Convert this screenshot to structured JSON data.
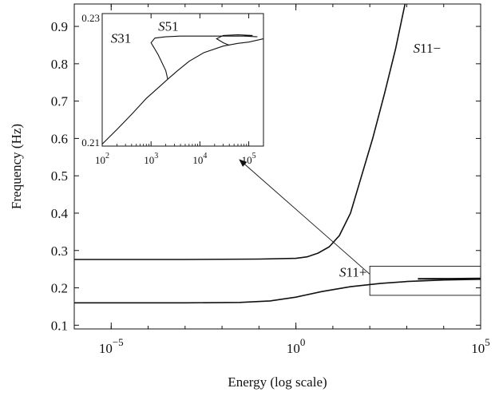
{
  "chart_data": [
    {
      "type": "line",
      "xlabel": "Energy (log scale)",
      "ylabel": "Frequency (Hz)",
      "x_scale": "log",
      "xlim": [
        1e-06,
        100000
      ],
      "ylim": [
        0.09,
        0.96
      ],
      "x_ticks": [
        {
          "value": 1e-05,
          "base": "10",
          "exp": "−5"
        },
        {
          "value": 1,
          "base": "10",
          "exp": "0"
        },
        {
          "value": 100000,
          "base": "10",
          "exp": "5"
        }
      ],
      "y_ticks": [
        {
          "value": 0.1,
          "label": "0.1"
        },
        {
          "value": 0.2,
          "label": "0.2"
        },
        {
          "value": 0.3,
          "label": "0.3"
        },
        {
          "value": 0.4,
          "label": "0.4"
        },
        {
          "value": 0.5,
          "label": "0.5"
        },
        {
          "value": 0.6,
          "label": "0.6"
        },
        {
          "value": 0.7,
          "label": "0.7"
        },
        {
          "value": 0.8,
          "label": "0.8"
        },
        {
          "value": 0.9,
          "label": "0.9"
        }
      ],
      "series": [
        {
          "name": "S11−",
          "points": [
            [
              1e-06,
              0.276
            ],
            [
              0.001,
              0.276
            ],
            [
              0.1,
              0.277
            ],
            [
              1,
              0.279
            ],
            [
              2,
              0.283
            ],
            [
              4,
              0.293
            ],
            [
              8,
              0.31
            ],
            [
              15,
              0.34
            ],
            [
              30,
              0.4
            ],
            [
              60,
              0.5
            ],
            [
              120,
              0.6
            ],
            [
              250,
              0.72
            ],
            [
              500,
              0.84
            ],
            [
              900,
              0.96
            ]
          ]
        },
        {
          "name": "S11+",
          "points": [
            [
              1e-06,
              0.16
            ],
            [
              0.001,
              0.16
            ],
            [
              0.03,
              0.161
            ],
            [
              0.2,
              0.165
            ],
            [
              1,
              0.175
            ],
            [
              5,
              0.19
            ],
            [
              30,
              0.203
            ],
            [
              200,
              0.212
            ],
            [
              1000,
              0.217
            ],
            [
              10000,
              0.221
            ],
            [
              100000,
              0.223
            ]
          ]
        },
        {
          "name": "S31",
          "points": [
            [
              2000,
              0.224
            ],
            [
              5000,
              0.2245
            ],
            [
              15000,
              0.2245
            ],
            [
              50000,
              0.2248
            ],
            [
              100000,
              0.225
            ]
          ]
        }
      ],
      "annotations": [
        {
          "text": "S11−",
          "x": 1500,
          "y": 0.83
        },
        {
          "text": "S11+",
          "x": 15,
          "y": 0.23
        }
      ],
      "zoom_box": {
        "xlim": [
          100,
          100000
        ],
        "ylim": [
          0.18,
          0.258
        ]
      }
    },
    {
      "type": "line",
      "x_scale": "log",
      "xlim": [
        100,
        200000
      ],
      "ylim": [
        0.21,
        0.23
      ],
      "x_ticks": [
        {
          "value": 100,
          "base": "10",
          "exp": "2"
        },
        {
          "value": 1000,
          "base": "10",
          "exp": "3"
        },
        {
          "value": 10000,
          "base": "10",
          "exp": "4"
        },
        {
          "value": 100000,
          "base": "10",
          "exp": "5"
        }
      ],
      "y_ticks": [
        {
          "value": 0.21,
          "label": "0.21"
        },
        {
          "value": 0.23,
          "label": "0.23"
        }
      ],
      "series": [
        {
          "name": "S11+",
          "points": [
            [
              100,
              0.2103
            ],
            [
              200,
              0.2125
            ],
            [
              400,
              0.2148
            ],
            [
              800,
              0.2172
            ],
            [
              1500,
              0.219
            ],
            [
              2200,
              0.2201
            ],
            [
              3500,
              0.2214
            ],
            [
              6000,
              0.2228
            ],
            [
              12000,
              0.2241
            ],
            [
              30000,
              0.2251
            ],
            [
              60000,
              0.2255
            ],
            [
              100000,
              0.2257
            ],
            [
              200000,
              0.2262
            ]
          ]
        },
        {
          "name": "S31",
          "points": [
            [
              2200,
              0.2201
            ],
            [
              2000,
              0.2214
            ],
            [
              1400,
              0.2238
            ],
            [
              1000,
              0.2256
            ],
            [
              1200,
              0.2263
            ],
            [
              2000,
              0.2265
            ],
            [
              4000,
              0.2266
            ],
            [
              20000,
              0.2266
            ],
            [
              80000,
              0.2266
            ],
            [
              150000,
              0.2265
            ]
          ]
        },
        {
          "name": "S51",
          "points": [
            [
              40000,
              0.2252
            ],
            [
              30000,
              0.2256
            ],
            [
              22000,
              0.2262
            ],
            [
              30000,
              0.2267
            ],
            [
              60000,
              0.2268
            ],
            [
              120000,
              0.2267
            ],
            [
              100000,
              0.2266
            ],
            [
              80000,
              0.2267
            ]
          ]
        }
      ],
      "annotations": [
        {
          "text": "S51",
          "x": 1400,
          "y": 0.2274
        },
        {
          "text": "S31",
          "x": 150,
          "y": 0.2256
        }
      ]
    }
  ]
}
